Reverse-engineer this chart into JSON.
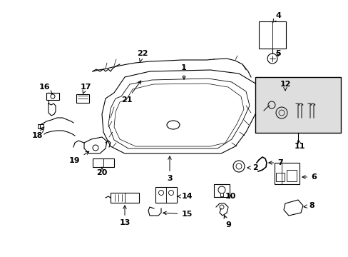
{
  "bg_color": "#ffffff",
  "line_color": "#000000",
  "label_color": "#000000",
  "label_fontsize": 8,
  "box_bg": "#dedede",
  "fig_w": 4.89,
  "fig_h": 3.6,
  "dpi": 100
}
